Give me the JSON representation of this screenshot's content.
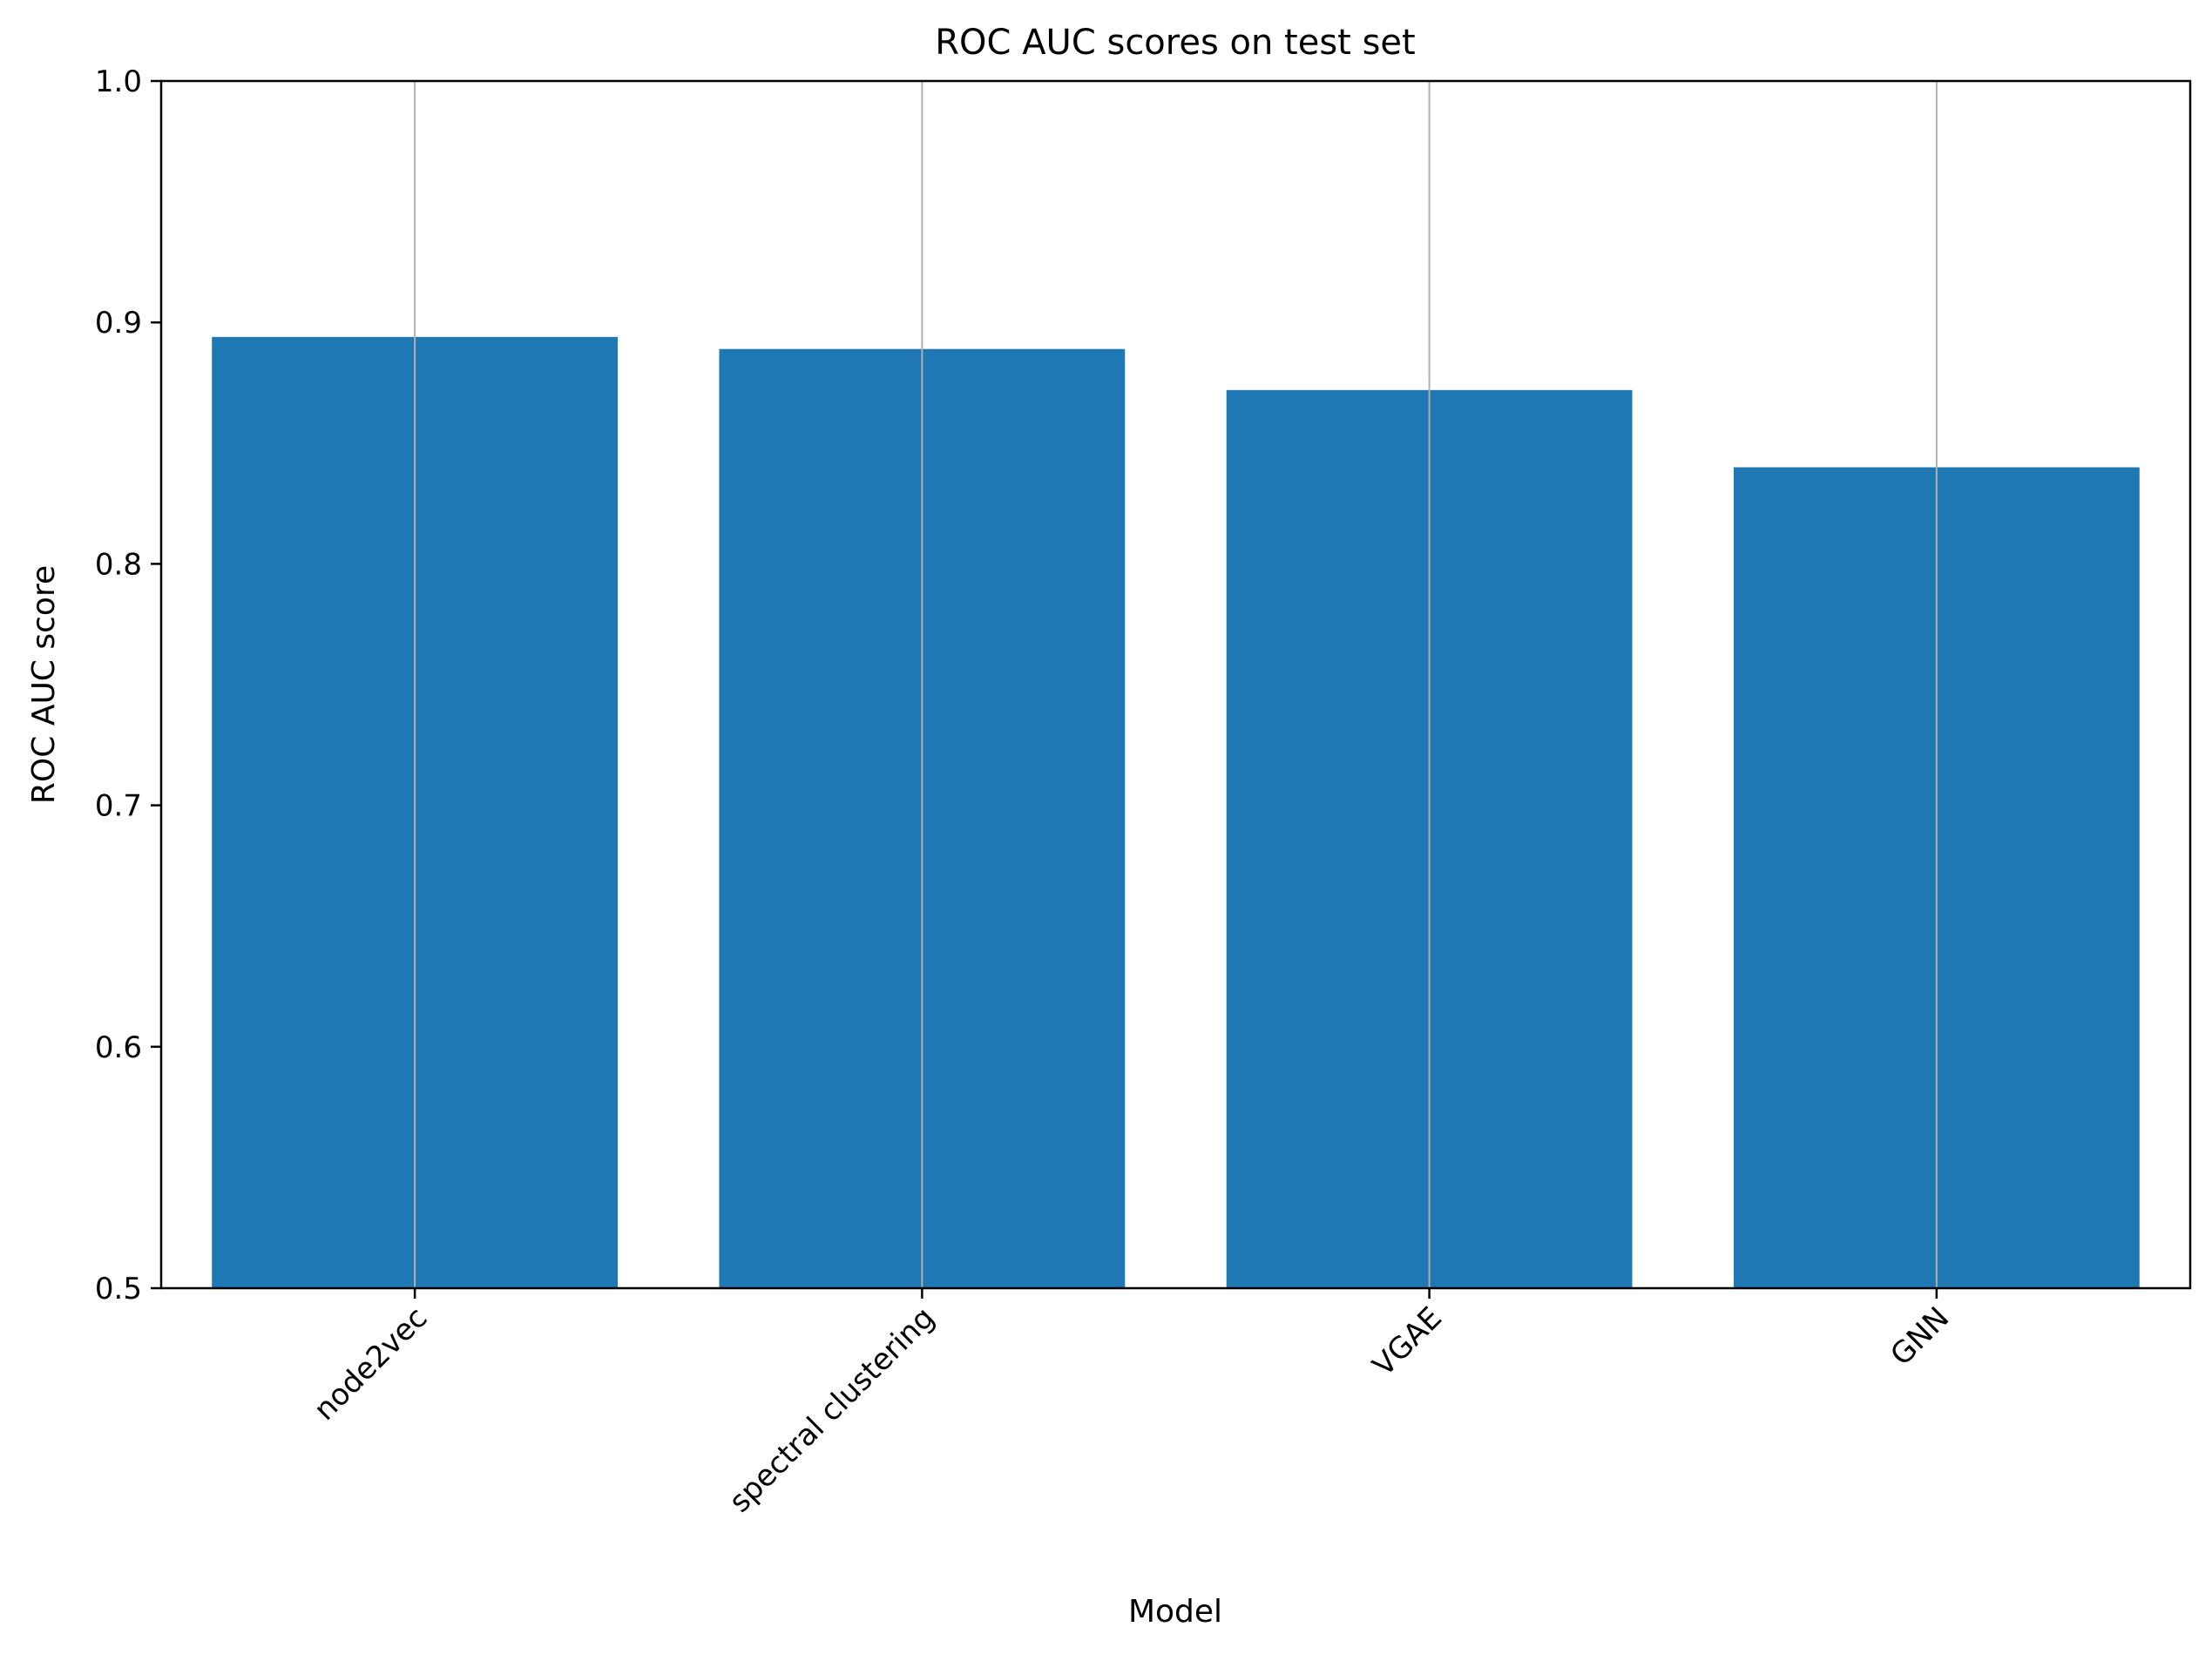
{
  "chart_data": {
    "type": "bar",
    "title": "ROC AUC scores on test set",
    "xlabel": "Model",
    "ylabel": "ROC AUC score",
    "categories": [
      "node2vec",
      "spectral clustering",
      "VGAE",
      "GNN"
    ],
    "values": [
      0.894,
      0.889,
      0.872,
      0.84
    ],
    "ylim": [
      0.5,
      1.0
    ],
    "yticks": [
      0.5,
      0.6,
      0.7,
      0.8,
      0.9,
      1.0
    ],
    "ytick_labels": [
      "0.5",
      "0.6",
      "0.7",
      "0.8",
      "0.9",
      "1.0"
    ],
    "grid": "vertical (x-axis only)",
    "legend": "none",
    "bar_color": "#1f77b4",
    "grid_color": "#b0b0b0"
  }
}
